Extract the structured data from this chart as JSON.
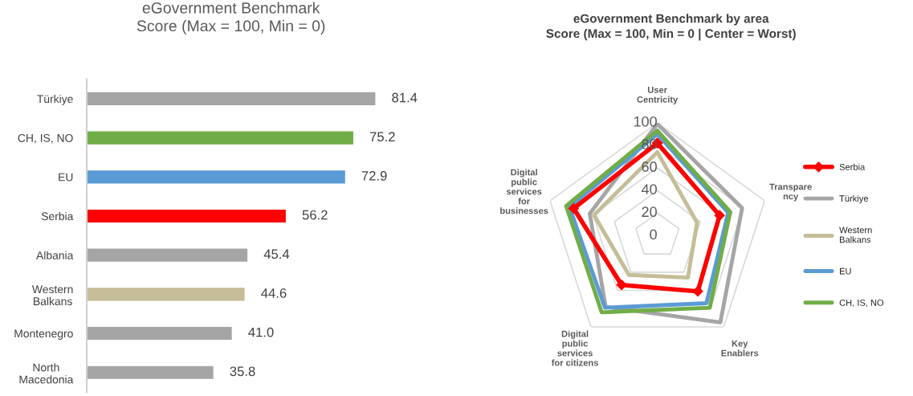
{
  "chart_data": [
    {
      "type": "bar",
      "orientation": "horizontal",
      "title": "eGovernment Benchmark",
      "subtitle": "Score (Max = 100, Min = 0)",
      "categories": [
        "Türkiye",
        "CH, IS, NO",
        "EU",
        "Serbia",
        "Albania",
        "Western\nBalkans",
        "Montenegro",
        "North\nMacedonia"
      ],
      "values": [
        81.4,
        75.2,
        72.9,
        56.2,
        45.4,
        44.6,
        41.0,
        35.8
      ],
      "colors": [
        "#a5a5a5",
        "#70ad47",
        "#5b9bd5",
        "#ff0000",
        "#a5a5a5",
        "#c4bd97",
        "#a5a5a5",
        "#a5a5a5"
      ],
      "value_labels": [
        "81.4",
        "75.2",
        "72.9",
        "56.2",
        "45.4",
        "44.6",
        "41.0",
        "35.8"
      ],
      "grid": false,
      "legend": false
    },
    {
      "type": "radar",
      "title": "eGovernment Benchmark by area",
      "subtitle": "Score (Max = 100, Min = 0 | Center = Worst)",
      "categories": [
        "User\nCentricity",
        "Transpare\nncy",
        "Key\nEnablers",
        "Digital\npublic\nservices\nfor citizens",
        "Digital\npublic\nservices\nfor\nbusinesses"
      ],
      "ylim": [
        0,
        100
      ],
      "yticks": [
        0,
        20,
        40,
        60,
        80,
        100
      ],
      "grid": true,
      "legend": "right",
      "series": [
        {
          "name": "Serbia",
          "color": "#ff0000",
          "marker": "diamond",
          "values": [
            82,
            58,
            61,
            54,
            78
          ]
        },
        {
          "name": "Türkiye",
          "color": "#a5a5a5",
          "marker": "none",
          "values": [
            99,
            79,
            95,
            78,
            63
          ]
        },
        {
          "name": "Western\nBalkans",
          "color": "#c4bd97",
          "marker": "none",
          "values": [
            74,
            37,
            46,
            43,
            59
          ]
        },
        {
          "name": "EU",
          "color": "#5b9bd5",
          "marker": "none",
          "values": [
            90,
            66,
            74,
            79,
            82
          ]
        },
        {
          "name": "CH, IS, NO",
          "color": "#70ad47",
          "marker": "none",
          "values": [
            93,
            68,
            79,
            84,
            85
          ]
        }
      ]
    }
  ]
}
